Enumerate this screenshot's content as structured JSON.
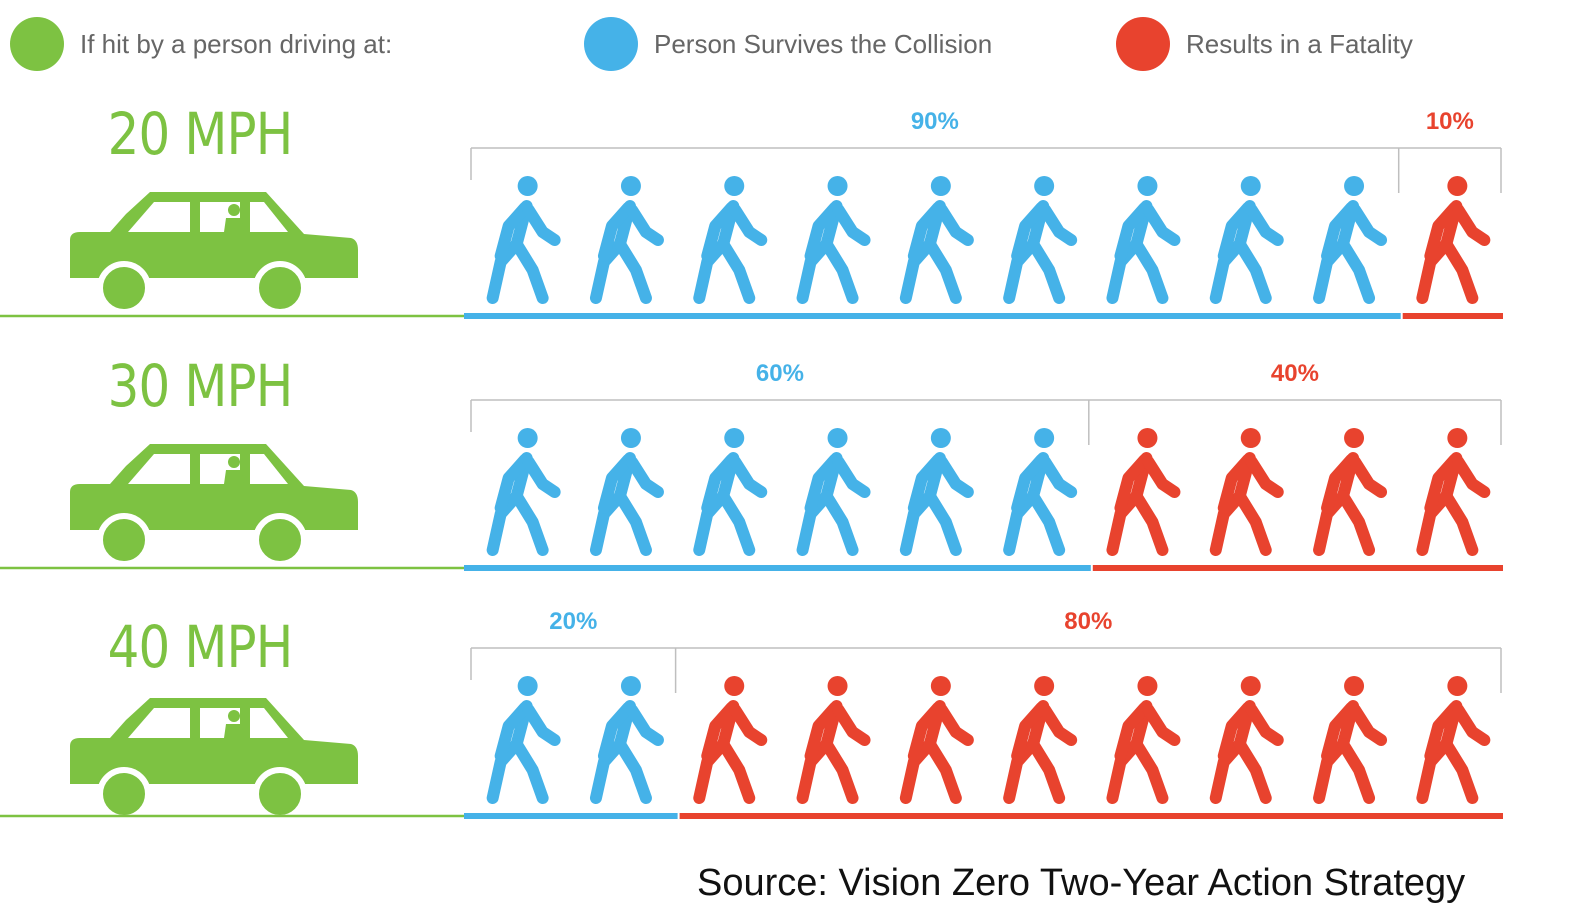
{
  "legend": [
    {
      "label": "If hit by a person driving at:",
      "icon": "green-dot-icon",
      "color": "#7dc242"
    },
    {
      "label": "Person Survives the Collision",
      "icon": "blue-dot-icon",
      "color": "#45b2e8"
    },
    {
      "label": "Results in a Fatality",
      "icon": "red-dot-icon",
      "color": "#e8432e"
    }
  ],
  "colors": {
    "speed": "#7dc242",
    "survive": "#45b2e8",
    "fatal": "#e8432e",
    "bracket": "#bfbfbf"
  },
  "rows": [
    {
      "speed": "20 MPH",
      "icon": "car-icon",
      "survive_label": "90%",
      "fatal_label": "10%"
    },
    {
      "speed": "30 MPH",
      "icon": "car-icon",
      "survive_label": "60%",
      "fatal_label": "40%"
    },
    {
      "speed": "40 MPH",
      "icon": "car-icon",
      "survive_label": "20%",
      "fatal_label": "80%"
    }
  ],
  "chart_data": {
    "type": "bar",
    "categories": [
      "20 MPH",
      "30 MPH",
      "40 MPH"
    ],
    "series": [
      {
        "name": "Person Survives the Collision",
        "values": [
          90,
          60,
          20
        ]
      },
      {
        "name": "Results in a Fatality",
        "values": [
          10,
          40,
          80
        ]
      }
    ],
    "unit": "%",
    "icons_per_row": 10,
    "icon": "pedestrian-walking-icon"
  },
  "source": "Source: Vision Zero Two-Year Action Strategy"
}
